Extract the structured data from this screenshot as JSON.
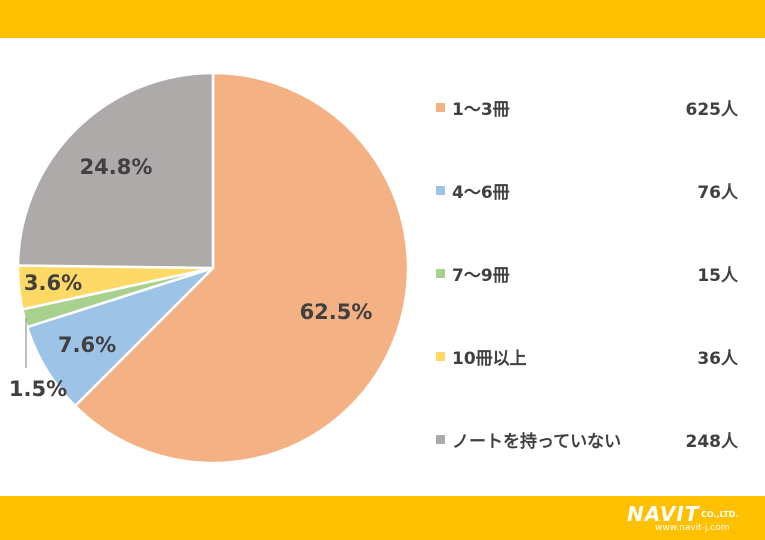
{
  "colors": {
    "band": "#FFC000",
    "slices": [
      "#F4B183",
      "#9DC3E6",
      "#A9D18E",
      "#FFD966",
      "#AEAAAA"
    ]
  },
  "chart_data": {
    "type": "pie",
    "categories": [
      "1〜3冊",
      "4〜6冊",
      "7〜9冊",
      "10冊以上",
      "ノートを持っていない"
    ],
    "values": [
      625,
      76,
      15,
      36,
      248
    ],
    "counts_text": [
      "625人",
      "76人",
      "15人",
      "36人",
      "248人"
    ],
    "percent_labels": [
      "62.5%",
      "7.6%",
      "1.5%",
      "3.6%",
      "24.8%"
    ],
    "legend_position": "right"
  },
  "logo": {
    "name": "NAVIT",
    "suffix": "CO.,LTD.",
    "url": "www.navit-j.com"
  }
}
